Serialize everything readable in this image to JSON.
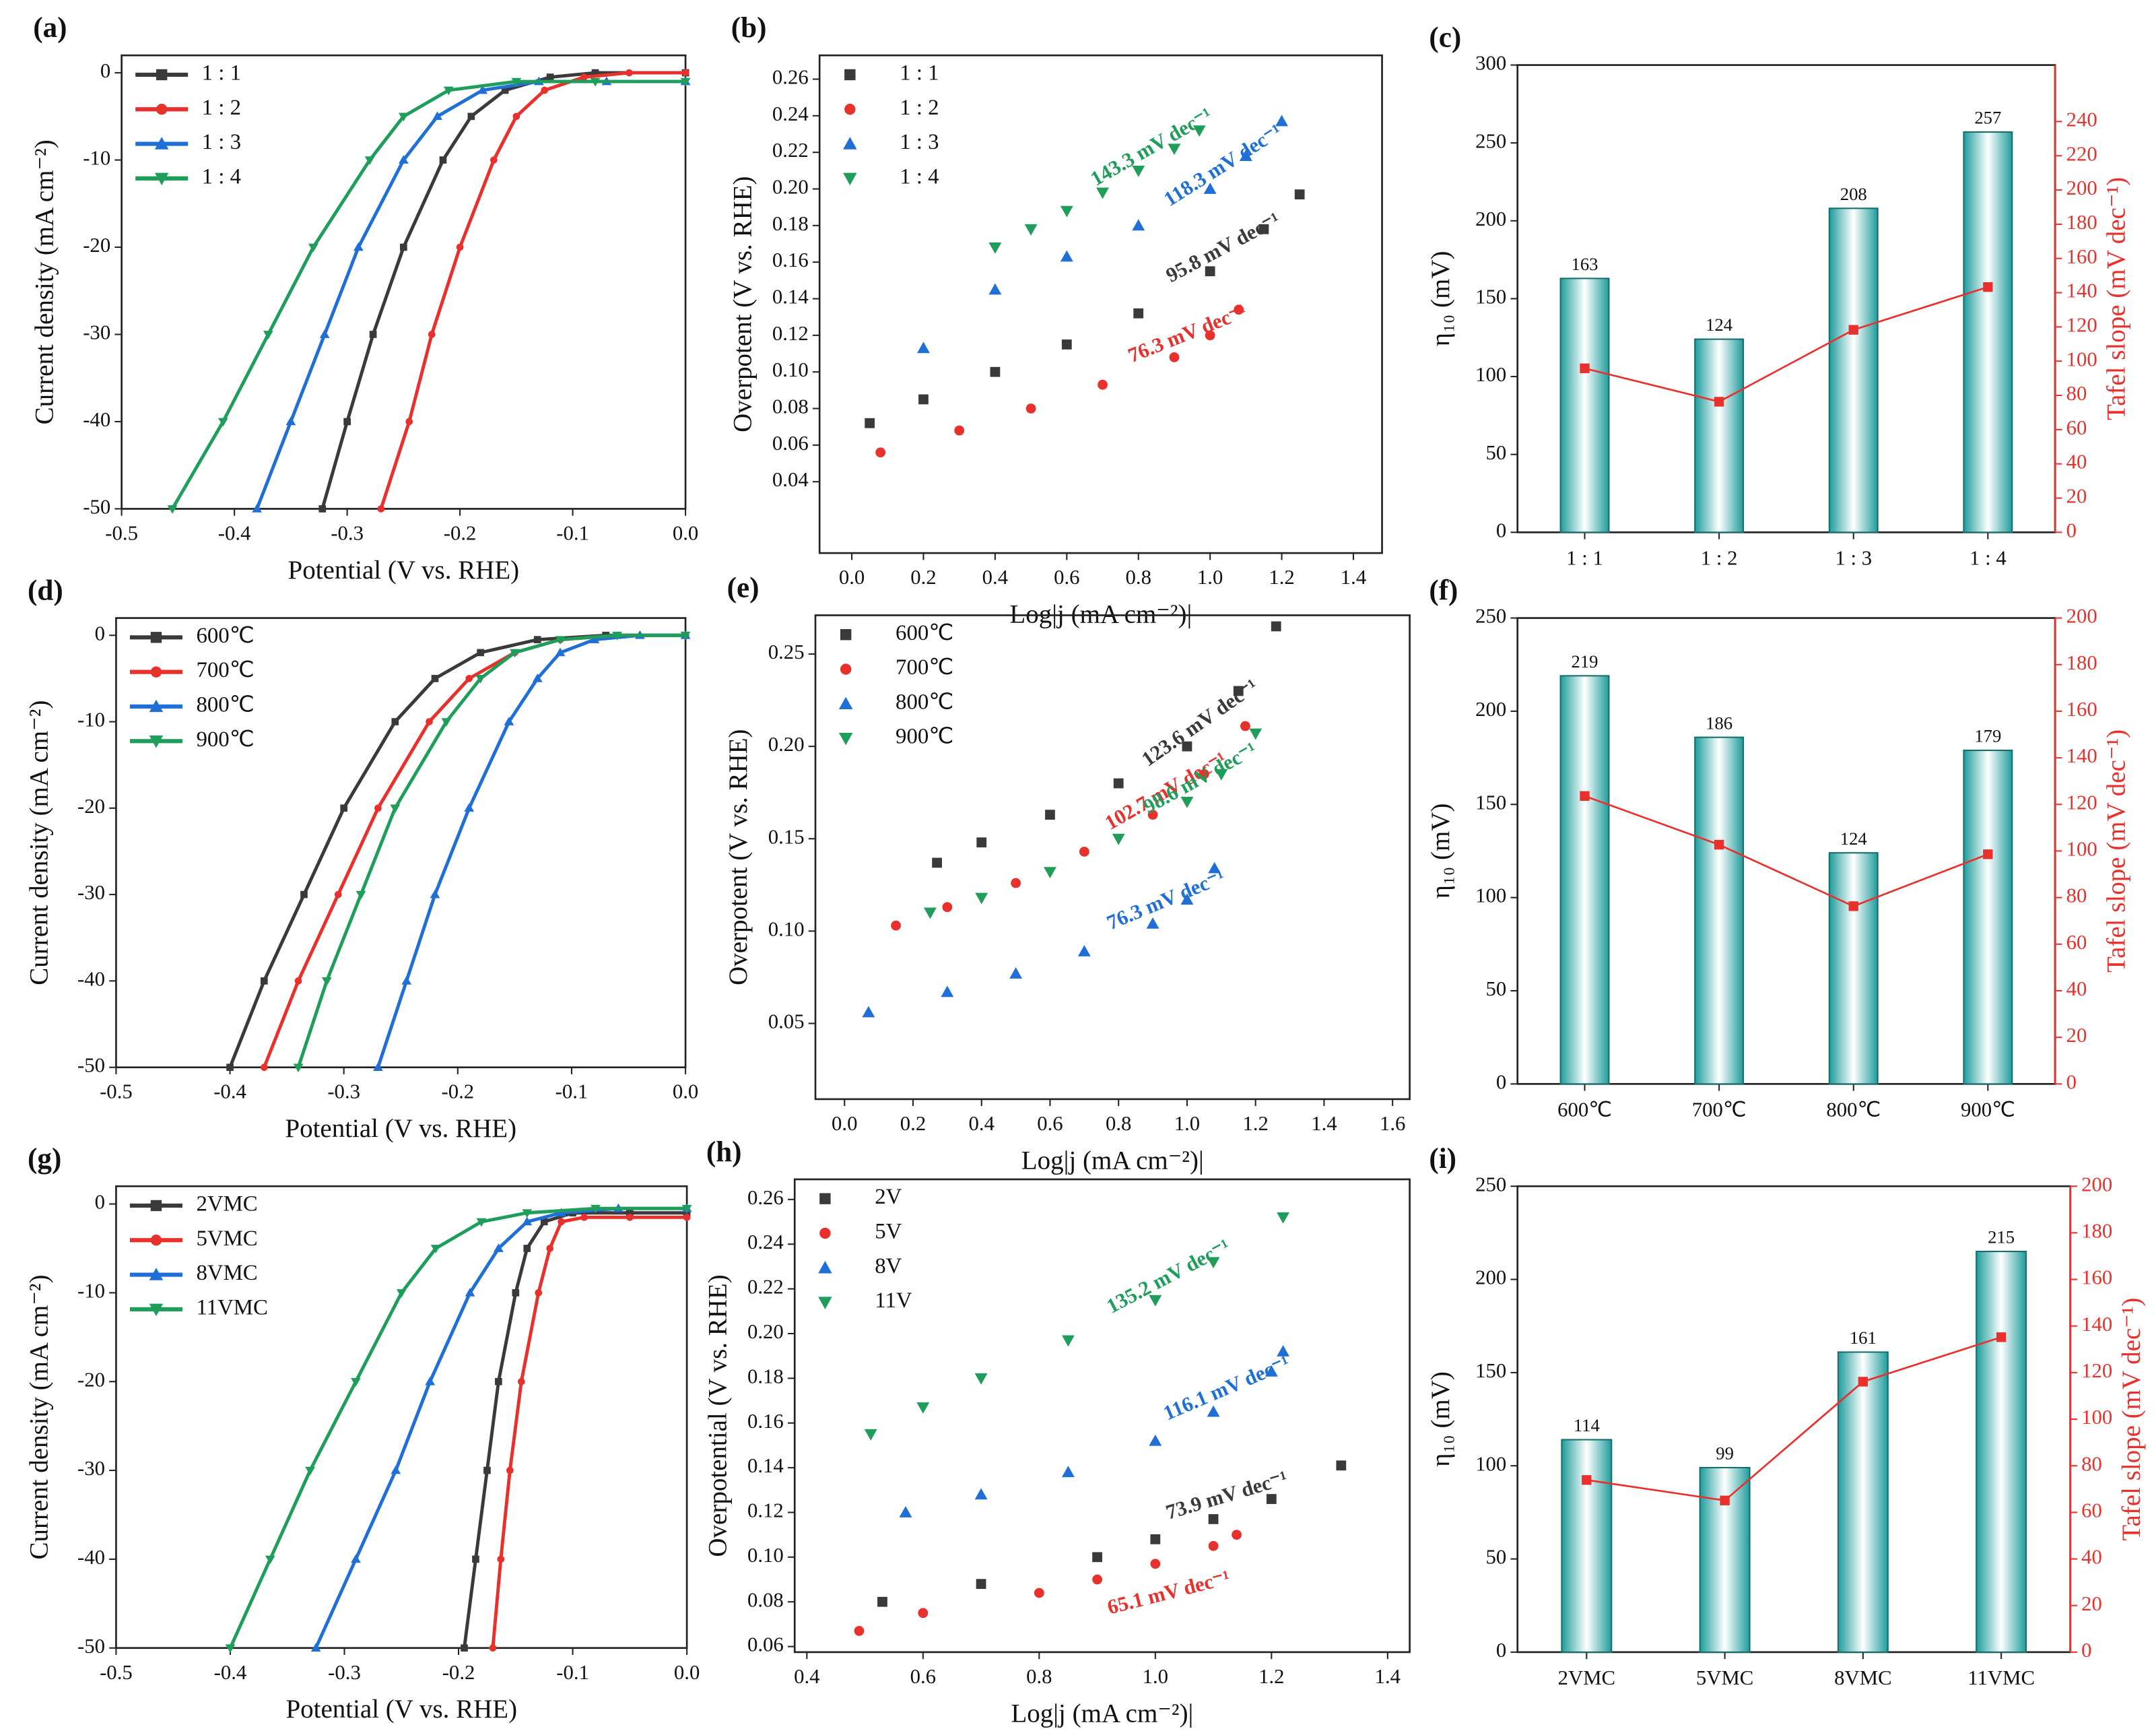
{
  "chart_data": [
    {
      "type": "line",
      "label": "(a)",
      "xlabel": "Potential (V vs. RHE)",
      "ylabel": "Current density (mA cm⁻²)",
      "xlim": [
        -0.5,
        0
      ],
      "ylim": [
        -50,
        2
      ],
      "xticks": [
        -0.5,
        -0.4,
        -0.3,
        -0.2,
        -0.1,
        {
          "value": 0,
          "label": "0.0"
        }
      ],
      "yticks": [
        0,
        -10,
        -20,
        -30,
        -40,
        -50
      ],
      "legend": "upper left",
      "series": [
        {
          "name": "1 : 1",
          "color": "#3a3a3a",
          "marker": "square",
          "x": [
            -0.322,
            -0.3,
            -0.277,
            -0.25,
            -0.215,
            -0.19,
            -0.16,
            -0.12,
            -0.08,
            0
          ],
          "values": [
            -50,
            -40,
            -30,
            -20,
            -10,
            -5,
            -2,
            -0.5,
            0,
            0
          ]
        },
        {
          "name": "1 : 2",
          "color": "#e8312c",
          "marker": "circle",
          "x": [
            -0.27,
            -0.245,
            -0.225,
            -0.2,
            -0.17,
            -0.15,
            -0.125,
            -0.09,
            -0.05,
            0
          ],
          "values": [
            -50,
            -40,
            -30,
            -20,
            -10,
            -5,
            -2,
            -0.5,
            0,
            0
          ]
        },
        {
          "name": "1 : 3",
          "color": "#1f6fd6",
          "marker": "triangle",
          "x": [
            -0.38,
            -0.35,
            -0.32,
            -0.29,
            -0.25,
            -0.22,
            -0.18,
            -0.13,
            -0.07,
            0
          ],
          "values": [
            -50,
            -40,
            -30,
            -20,
            -10,
            -5,
            -2,
            -1,
            -1,
            -1
          ]
        },
        {
          "name": "1 : 4",
          "color": "#1e9e5a",
          "marker": "triangle-down",
          "x": [
            -0.455,
            -0.41,
            -0.37,
            -0.33,
            -0.28,
            -0.25,
            -0.21,
            -0.15,
            -0.08,
            0
          ],
          "values": [
            -50,
            -40,
            -30,
            -20,
            -10,
            -5,
            -2,
            -1,
            -1,
            -1
          ]
        }
      ]
    },
    {
      "type": "scatter",
      "label": "(b)",
      "xlabel": "Log|j (mA cm⁻²)|",
      "ylabel": "Overpotent (V vs. RHE)",
      "xlim": [
        -0.09,
        1.48
      ],
      "ylim": [
        0.001,
        0.273
      ],
      "xticks": [
        {
          "value": 0,
          "label": "0.0"
        },
        0.2,
        0.4,
        0.6,
        0.8,
        {
          "value": 1,
          "label": "1.0"
        },
        1.2,
        1.4
      ],
      "yticks": [
        0.04,
        0.06,
        0.08,
        {
          "value": 0.1,
          "label": "0.10"
        },
        0.12,
        0.14,
        0.16,
        0.18,
        {
          "value": 0.2,
          "label": "0.20"
        },
        0.22,
        0.24,
        0.26
      ],
      "legend": "upper left",
      "series": [
        {
          "name": "1 : 1",
          "color": "#3a3a3a",
          "marker": "square",
          "annotation": "95.8 mV dec⁻¹",
          "x": [
            0.05,
            0.2,
            0.4,
            0.6,
            0.8,
            1.0,
            1.15,
            1.25
          ],
          "values": [
            0.072,
            0.085,
            0.1,
            0.115,
            0.132,
            0.155,
            0.178,
            0.197
          ]
        },
        {
          "name": "1 : 2",
          "color": "#e8312c",
          "marker": "circle",
          "annotation": "76.3 mV dec⁻¹",
          "x": [
            0.08,
            0.3,
            0.5,
            0.7,
            0.9,
            1.0,
            1.08
          ],
          "values": [
            0.056,
            0.068,
            0.08,
            0.093,
            0.108,
            0.12,
            0.134
          ]
        },
        {
          "name": "1 : 3",
          "color": "#1f6fd6",
          "marker": "triangle",
          "annotation": "118.3 mV dec⁻¹",
          "x": [
            0.2,
            0.4,
            0.6,
            0.8,
            1.0,
            1.1,
            1.2
          ],
          "values": [
            0.113,
            0.145,
            0.163,
            0.18,
            0.2,
            0.218,
            0.237
          ]
        },
        {
          "name": "1 : 4",
          "color": "#1e9e5a",
          "marker": "triangle-down",
          "annotation": "143.3 mV dec⁻¹",
          "x": [
            0.4,
            0.5,
            0.6,
            0.7,
            0.8,
            0.9,
            0.97
          ],
          "values": [
            0.168,
            0.178,
            0.188,
            0.198,
            0.21,
            0.222,
            0.232
          ]
        }
      ]
    },
    {
      "type": "bar",
      "label": "(c)",
      "ylabel": "η₁₀ (mV)",
      "y2label": "Tafel slope (mV dec⁻¹)",
      "categories": [
        "1 : 1",
        "1 : 2",
        "1 : 3",
        "1 : 4"
      ],
      "ylim": [
        0,
        300
      ],
      "yticks": [
        0,
        50,
        100,
        150,
        200,
        250,
        300
      ],
      "y2lim": [
        0,
        273
      ],
      "y2ticks": [
        0,
        20,
        40,
        60,
        80,
        100,
        120,
        140,
        160,
        180,
        200,
        220,
        240
      ],
      "series": [
        {
          "color": "#3fb3b3",
          "values": [
            163,
            124,
            208,
            257
          ]
        },
        {
          "color": "#e8312c",
          "axis": "y2",
          "values": [
            95.8,
            76.3,
            118.3,
            143.3
          ]
        }
      ]
    },
    {
      "type": "line",
      "label": "(d)",
      "xlabel": "Potential (V vs. RHE)",
      "ylabel": "Current density (mA cm⁻²)",
      "xlim": [
        -0.5,
        0
      ],
      "ylim": [
        -50,
        2
      ],
      "xticks": [
        -0.5,
        -0.4,
        -0.3,
        -0.2,
        -0.1,
        {
          "value": 0,
          "label": "0.0"
        }
      ],
      "yticks": [
        0,
        -10,
        -20,
        -30,
        -40,
        -50
      ],
      "legend": "upper left",
      "series": [
        {
          "name": "600℃",
          "color": "#3a3a3a",
          "marker": "square",
          "x": [
            -0.4,
            -0.37,
            -0.335,
            -0.3,
            -0.255,
            -0.22,
            -0.18,
            -0.13,
            -0.07,
            0
          ],
          "values": [
            -50,
            -40,
            -30,
            -20,
            -10,
            -5,
            -2,
            -0.5,
            0,
            0
          ]
        },
        {
          "name": "700℃",
          "color": "#e8312c",
          "marker": "circle",
          "x": [
            -0.37,
            -0.34,
            -0.305,
            -0.27,
            -0.225,
            -0.19,
            -0.15,
            -0.11,
            -0.06,
            0
          ],
          "values": [
            -50,
            -40,
            -30,
            -20,
            -10,
            -5,
            -2,
            -0.5,
            0,
            0
          ]
        },
        {
          "name": "800℃",
          "color": "#1f6fd6",
          "marker": "triangle",
          "x": [
            -0.27,
            -0.245,
            -0.22,
            -0.19,
            -0.155,
            -0.13,
            -0.11,
            -0.08,
            -0.04,
            0
          ],
          "values": [
            -50,
            -40,
            -30,
            -20,
            -10,
            -5,
            -2,
            -0.5,
            0,
            0
          ]
        },
        {
          "name": "900℃",
          "color": "#1e9e5a",
          "marker": "triangle-down",
          "x": [
            -0.34,
            -0.315,
            -0.285,
            -0.255,
            -0.21,
            -0.18,
            -0.15,
            -0.11,
            -0.06,
            0
          ],
          "values": [
            -50,
            -40,
            -30,
            -20,
            -10,
            -5,
            -2,
            -0.5,
            0,
            0
          ]
        }
      ]
    },
    {
      "type": "scatter",
      "label": "(e)",
      "xlabel": "Log|j (mA cm⁻²)|",
      "ylabel": "Overpotent (V vs. RHE)",
      "xlim": [
        -0.085,
        1.65
      ],
      "ylim": [
        0.009,
        0.271
      ],
      "xticks": [
        {
          "value": 0,
          "label": "0.0"
        },
        0.2,
        0.4,
        0.6,
        0.8,
        {
          "value": 1,
          "label": "1.0"
        },
        1.2,
        1.4,
        1.6
      ],
      "yticks": [
        0.05,
        {
          "value": 0.1,
          "label": "0.10"
        },
        0.15,
        {
          "value": 0.2,
          "label": "0.20"
        },
        0.25
      ],
      "legend": "upper left",
      "series": [
        {
          "name": "600℃",
          "color": "#3a3a3a",
          "marker": "square",
          "annotation": "123.6 mV dec⁻¹",
          "x": [
            0.27,
            0.4,
            0.6,
            0.8,
            1.0,
            1.15,
            1.26
          ],
          "values": [
            0.137,
            0.148,
            0.163,
            0.18,
            0.2,
            0.23,
            0.265
          ]
        },
        {
          "name": "700℃",
          "color": "#e8312c",
          "marker": "circle",
          "annotation": "102.7 mV dec⁻¹",
          "x": [
            0.15,
            0.3,
            0.5,
            0.7,
            0.9,
            1.05,
            1.17
          ],
          "values": [
            0.103,
            0.113,
            0.126,
            0.143,
            0.163,
            0.185,
            0.211
          ]
        },
        {
          "name": "800℃",
          "color": "#1f6fd6",
          "marker": "triangle",
          "annotation": "76.3 mV dec⁻¹",
          "x": [
            0.07,
            0.3,
            0.5,
            0.7,
            0.9,
            1.0,
            1.08
          ],
          "values": [
            0.056,
            0.067,
            0.077,
            0.089,
            0.104,
            0.117,
            0.134
          ]
        },
        {
          "name": "900℃",
          "color": "#1e9e5a",
          "marker": "triangle-down",
          "annotation": "98.6 mV dec⁻¹",
          "x": [
            0.25,
            0.4,
            0.6,
            0.8,
            1.0,
            1.1,
            1.2
          ],
          "values": [
            0.11,
            0.118,
            0.132,
            0.15,
            0.17,
            0.185,
            0.207
          ]
        }
      ]
    },
    {
      "type": "bar",
      "label": "(f)",
      "ylabel": "η₁₀ (mV)",
      "y2label": "Tafel slope (mV dec⁻¹)",
      "categories": [
        "600℃",
        "700℃",
        "800℃",
        "900℃"
      ],
      "ylim": [
        0,
        250
      ],
      "yticks": [
        0,
        50,
        100,
        150,
        200,
        250
      ],
      "y2lim": [
        0,
        200
      ],
      "y2ticks": [
        0,
        20,
        40,
        60,
        80,
        100,
        120,
        140,
        160,
        180,
        200
      ],
      "series": [
        {
          "color": "#3fb3b3",
          "values": [
            219,
            186,
            124,
            179
          ]
        },
        {
          "color": "#e8312c",
          "axis": "y2",
          "values": [
            123.6,
            102.7,
            76.3,
            98.6
          ]
        }
      ]
    },
    {
      "type": "line",
      "label": "(g)",
      "xlabel": "Potential (V vs. RHE)",
      "ylabel": "Current density (mA cm⁻²)",
      "xlim": [
        -0.5,
        0
      ],
      "ylim": [
        -50,
        2
      ],
      "xticks": [
        -0.5,
        -0.4,
        -0.3,
        -0.2,
        -0.1,
        {
          "value": 0,
          "label": "0.0"
        }
      ],
      "yticks": [
        0,
        -10,
        -20,
        -30,
        -40,
        -50
      ],
      "legend": "upper left",
      "series": [
        {
          "name": "2VMC",
          "color": "#3a3a3a",
          "marker": "square",
          "x": [
            -0.195,
            -0.185,
            -0.175,
            -0.165,
            -0.15,
            -0.14,
            -0.125,
            -0.1,
            -0.05,
            0
          ],
          "values": [
            -50,
            -40,
            -30,
            -20,
            -10,
            -5,
            -2,
            -1,
            -1,
            -1
          ]
        },
        {
          "name": "5VMC",
          "color": "#e8312c",
          "marker": "circle",
          "x": [
            -0.17,
            -0.163,
            -0.155,
            -0.145,
            -0.13,
            -0.12,
            -0.11,
            -0.09,
            -0.05,
            0
          ],
          "values": [
            -50,
            -40,
            -30,
            -20,
            -10,
            -5,
            -2,
            -1.5,
            -1.5,
            -1.5
          ]
        },
        {
          "name": "8VMC",
          "color": "#1f6fd6",
          "marker": "triangle",
          "x": [
            -0.325,
            -0.29,
            -0.255,
            -0.225,
            -0.19,
            -0.165,
            -0.14,
            -0.11,
            -0.06,
            0
          ],
          "values": [
            -50,
            -40,
            -30,
            -20,
            -10,
            -5,
            -2,
            -1,
            -0.5,
            -0.5
          ]
        },
        {
          "name": "11VMC",
          "color": "#1e9e5a",
          "marker": "triangle-down",
          "x": [
            -0.4,
            -0.365,
            -0.33,
            -0.29,
            -0.25,
            -0.22,
            -0.18,
            -0.14,
            -0.08,
            0
          ],
          "values": [
            -50,
            -40,
            -30,
            -20,
            -10,
            -5,
            -2,
            -1,
            -0.5,
            -0.5
          ]
        }
      ]
    },
    {
      "type": "scatter",
      "label": "(h)",
      "xlabel": "Log|j (mA cm⁻²)|",
      "ylabel": "Overpotential (V vs. RHE)",
      "xlim": [
        0.379,
        1.438
      ],
      "ylim": [
        0.0575,
        0.269
      ],
      "xticks": [
        0.4,
        0.6,
        0.8,
        {
          "value": 1,
          "label": "1.0"
        },
        1.2,
        1.4
      ],
      "yticks": [
        0.06,
        0.08,
        {
          "value": 0.1,
          "label": "0.10"
        },
        0.12,
        0.14,
        0.16,
        0.18,
        {
          "value": 0.2,
          "label": "0.20"
        },
        0.22,
        0.24,
        0.26
      ],
      "legend": "upper left",
      "series": [
        {
          "name": "2V",
          "color": "#3a3a3a",
          "marker": "square",
          "annotation": "73.9 mV dec⁻¹",
          "x": [
            0.53,
            0.7,
            0.9,
            1.0,
            1.1,
            1.2,
            1.32
          ],
          "values": [
            0.08,
            0.088,
            0.1,
            0.108,
            0.117,
            0.126,
            0.141
          ]
        },
        {
          "name": "5V",
          "color": "#e8312c",
          "marker": "circle",
          "annotation": "65.1 mV dec⁻¹",
          "x": [
            0.49,
            0.6,
            0.8,
            0.9,
            1.0,
            1.1,
            1.14
          ],
          "values": [
            0.067,
            0.075,
            0.084,
            0.09,
            0.097,
            0.105,
            0.11
          ]
        },
        {
          "name": "8V",
          "color": "#1f6fd6",
          "marker": "triangle",
          "annotation": "116.1 mV dec⁻¹",
          "x": [
            0.57,
            0.7,
            0.85,
            1.0,
            1.1,
            1.2,
            1.22
          ],
          "values": [
            0.12,
            0.128,
            0.138,
            0.152,
            0.165,
            0.183,
            0.192
          ]
        },
        {
          "name": "11V",
          "color": "#1e9e5a",
          "marker": "triangle-down",
          "annotation": "135.2 mV dec⁻¹",
          "x": [
            0.51,
            0.6,
            0.7,
            0.85,
            1.0,
            1.1,
            1.22
          ],
          "values": [
            0.155,
            0.167,
            0.18,
            0.197,
            0.215,
            0.232,
            0.252
          ]
        }
      ]
    },
    {
      "type": "bar",
      "label": "(i)",
      "ylabel": "η₁₀ (mV)",
      "y2label": "Tafel slope (mV dec⁻¹)",
      "categories": [
        "2VMC",
        "5VMC",
        "8VMC",
        "11VMC"
      ],
      "ylim": [
        0,
        250
      ],
      "yticks": [
        0,
        50,
        100,
        150,
        200,
        250
      ],
      "y2lim": [
        0,
        200
      ],
      "y2ticks": [
        0,
        20,
        40,
        60,
        80,
        100,
        120,
        140,
        160,
        180,
        200
      ],
      "series": [
        {
          "color": "#3fb3b3",
          "values": [
            114,
            99,
            161,
            215
          ]
        },
        {
          "color": "#e8312c",
          "axis": "y2",
          "values": [
            73.9,
            65.1,
            116.1,
            135.2
          ]
        }
      ]
    }
  ]
}
